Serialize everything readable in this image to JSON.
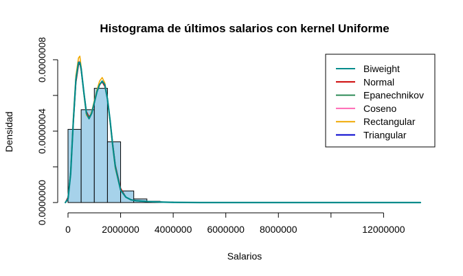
{
  "chart_data": {
    "type": "histogram",
    "title": "Histograma de últimos salarios con kernel Uniforme",
    "xlabel": "Salarios",
    "ylabel": "Densidad",
    "xlim": [
      -100000,
      13400000
    ],
    "ylim": [
      0,
      8e-07
    ],
    "x_ticks": [
      0,
      2000000,
      4000000,
      6000000,
      8000000,
      10000000,
      12000000
    ],
    "x_tick_labels": [
      "0",
      "2000000",
      "4000000",
      "6000000",
      "8000000",
      "",
      "12000000"
    ],
    "y_ticks": [
      0,
      2e-07,
      4e-07,
      6e-07,
      8e-07
    ],
    "y_tick_labels": [
      "0.0000000",
      "",
      "0.0000004",
      "",
      "0.0000008"
    ],
    "histogram": {
      "bin_width": 500000,
      "bins": [
        {
          "start": 0,
          "density": 4.1e-07
        },
        {
          "start": 500000,
          "density": 5.2e-07
        },
        {
          "start": 1000000,
          "density": 6.4e-07
        },
        {
          "start": 1500000,
          "density": 3.4e-07
        },
        {
          "start": 2000000,
          "density": 6.5e-08
        },
        {
          "start": 2500000,
          "density": 2e-08
        },
        {
          "start": 3000000,
          "density": 7e-09
        },
        {
          "start": 3500000,
          "density": 3e-09
        }
      ],
      "fill": "#a6d2ea",
      "stroke": "#000000"
    },
    "series": [
      {
        "name": "Biweight",
        "color": "#008b8b",
        "width": 2.2,
        "x": [
          -100000,
          0,
          100000,
          200000,
          300000,
          400000,
          450000,
          500000,
          600000,
          700000,
          800000,
          900000,
          1000000,
          1100000,
          1200000,
          1300000,
          1400000,
          1500000,
          1600000,
          1700000,
          1800000,
          2000000,
          2200000,
          2400000,
          2600000,
          3000000,
          3500000,
          4000000,
          5000000,
          7000000,
          10000000,
          13400000
        ],
        "y": [
          0,
          2e-08,
          1.6e-07,
          4.5e-07,
          6.9e-07,
          7.85e-07,
          7.85e-07,
          7.5e-07,
          6.2e-07,
          5e-07,
          4.7e-07,
          5e-07,
          5.6e-07,
          6.2e-07,
          6.6e-07,
          6.8e-07,
          6.6e-07,
          5.8e-07,
          4.6e-07,
          3.2e-07,
          2e-07,
          7e-08,
          3e-08,
          1.5e-08,
          1e-08,
          6e-09,
          3e-09,
          1e-09,
          0,
          0,
          0,
          0
        ]
      },
      {
        "name": "Normal",
        "color": "#cc0000",
        "width": 1.6,
        "x": [
          -100000,
          0,
          100000,
          200000,
          300000,
          400000,
          450000,
          500000,
          600000,
          700000,
          800000,
          900000,
          1000000,
          1100000,
          1200000,
          1300000,
          1400000,
          1500000,
          1600000,
          1700000,
          1800000,
          2000000,
          2200000,
          2400000,
          2600000,
          3000000,
          3500000,
          4000000,
          5000000,
          7000000,
          10000000,
          13400000
        ],
        "y": [
          0,
          3e-08,
          1.7e-07,
          4.4e-07,
          6.7e-07,
          7.7e-07,
          7.8e-07,
          7.4e-07,
          6.2e-07,
          5.1e-07,
          4.8e-07,
          5e-07,
          5.6e-07,
          6.2e-07,
          6.6e-07,
          6.75e-07,
          6.5e-07,
          5.8e-07,
          4.6e-07,
          3.3e-07,
          2.1e-07,
          8e-08,
          3e-08,
          1.6e-08,
          1e-08,
          6e-09,
          3e-09,
          1e-09,
          0,
          0,
          0,
          0
        ]
      },
      {
        "name": "Epanechnikov",
        "color": "#2e8b57",
        "width": 1.6,
        "x": [
          -100000,
          0,
          100000,
          200000,
          300000,
          400000,
          450000,
          500000,
          600000,
          700000,
          800000,
          900000,
          1000000,
          1100000,
          1200000,
          1300000,
          1400000,
          1500000,
          1600000,
          1700000,
          1800000,
          2000000,
          2200000,
          2400000,
          2600000,
          3000000,
          3500000,
          4000000,
          5000000,
          7000000,
          10000000,
          13400000
        ],
        "y": [
          0,
          2e-08,
          1.6e-07,
          4.5e-07,
          6.8e-07,
          7.8e-07,
          7.9e-07,
          7.5e-07,
          6.2e-07,
          5e-07,
          4.7e-07,
          5e-07,
          5.6e-07,
          6.2e-07,
          6.6e-07,
          6.8e-07,
          6.6e-07,
          5.8e-07,
          4.6e-07,
          3.2e-07,
          2e-07,
          7e-08,
          3e-08,
          1.5e-08,
          1e-08,
          6e-09,
          3e-09,
          1e-09,
          0,
          0,
          0,
          0
        ]
      },
      {
        "name": "Coseno",
        "color": "#ff69b4",
        "width": 1.6,
        "x": [
          -100000,
          0,
          100000,
          200000,
          300000,
          400000,
          450000,
          500000,
          600000,
          700000,
          800000,
          900000,
          1000000,
          1100000,
          1200000,
          1300000,
          1400000,
          1500000,
          1600000,
          1700000,
          1800000,
          2000000,
          2200000,
          2400000,
          2600000,
          3000000,
          3500000,
          4000000,
          5000000,
          7000000,
          10000000,
          13400000
        ],
        "y": [
          0,
          2e-08,
          1.6e-07,
          4.5e-07,
          6.9e-07,
          7.9e-07,
          7.9e-07,
          7.5e-07,
          6.2e-07,
          5e-07,
          4.7e-07,
          5e-07,
          5.6e-07,
          6.2e-07,
          6.6e-07,
          6.8e-07,
          6.6e-07,
          5.8e-07,
          4.6e-07,
          3.2e-07,
          2e-07,
          7e-08,
          3e-08,
          1.5e-08,
          1e-08,
          6e-09,
          3e-09,
          1e-09,
          0,
          0,
          0,
          0
        ]
      },
      {
        "name": "Rectangular",
        "color": "#f0a800",
        "width": 1.6,
        "x": [
          -100000,
          0,
          100000,
          200000,
          300000,
          400000,
          450000,
          500000,
          600000,
          700000,
          800000,
          900000,
          1000000,
          1100000,
          1200000,
          1300000,
          1400000,
          1500000,
          1600000,
          1700000,
          1800000,
          2000000,
          2200000,
          2400000,
          2600000,
          3000000,
          3500000,
          4000000,
          5000000,
          7000000,
          10000000,
          13400000
        ],
        "y": [
          0,
          2e-08,
          1.7e-07,
          4.7e-07,
          7.1e-07,
          8.1e-07,
          8.2e-07,
          7.6e-07,
          6.1e-07,
          4.9e-07,
          4.7e-07,
          5.1e-07,
          5.7e-07,
          6.3e-07,
          6.8e-07,
          7e-07,
          6.7e-07,
          5.8e-07,
          4.5e-07,
          3.1e-07,
          1.9e-07,
          7e-08,
          3e-08,
          1.5e-08,
          1e-08,
          6e-09,
          3e-09,
          1e-09,
          0,
          0,
          0,
          0
        ]
      },
      {
        "name": "Triangular",
        "color": "#0000cd",
        "width": 1.6,
        "x": [
          -100000,
          0,
          100000,
          200000,
          300000,
          400000,
          450000,
          500000,
          600000,
          700000,
          800000,
          900000,
          1000000,
          1100000,
          1200000,
          1300000,
          1400000,
          1500000,
          1600000,
          1700000,
          1800000,
          2000000,
          2200000,
          2400000,
          2600000,
          3000000,
          3500000,
          4000000,
          5000000,
          7000000,
          10000000,
          13400000
        ],
        "y": [
          0,
          2e-08,
          1.6e-07,
          4.5e-07,
          6.9e-07,
          7.8e-07,
          7.8e-07,
          7.5e-07,
          6.2e-07,
          5e-07,
          4.7e-07,
          5e-07,
          5.6e-07,
          6.2e-07,
          6.6e-07,
          6.8e-07,
          6.6e-07,
          5.8e-07,
          4.6e-07,
          3.2e-07,
          2e-07,
          7e-08,
          3e-08,
          1.5e-08,
          1e-08,
          6e-09,
          3e-09,
          1e-09,
          0,
          0,
          0,
          0
        ]
      }
    ],
    "draw_order": [
      1,
      2,
      3,
      4,
      5,
      0
    ],
    "legend": {
      "placement": "top-right",
      "entries": [
        {
          "label": "Biweight",
          "color": "#008b8b"
        },
        {
          "label": "Normal",
          "color": "#cc0000"
        },
        {
          "label": "Epanechnikov",
          "color": "#2e8b57"
        },
        {
          "label": "Coseno",
          "color": "#ff69b4"
        },
        {
          "label": "Rectangular",
          "color": "#f0a800"
        },
        {
          "label": "Triangular",
          "color": "#0000cd"
        }
      ]
    },
    "grid": false
  }
}
